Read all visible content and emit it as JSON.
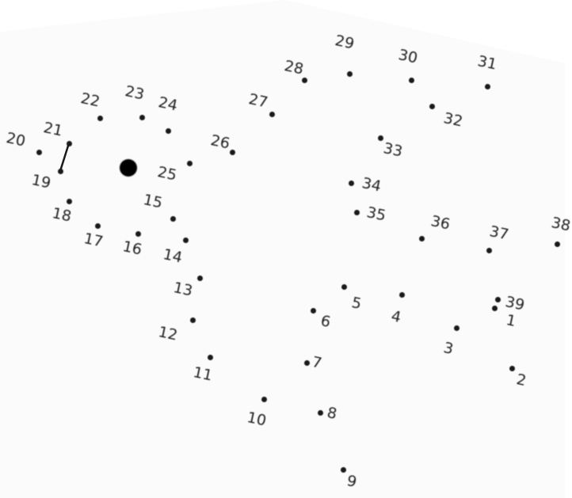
{
  "colors": {
    "paper": "#fbfbfb",
    "ink": "#1a1a1a"
  },
  "points": [
    {
      "label": "1"
    },
    {
      "label": "2"
    },
    {
      "label": "3"
    },
    {
      "label": "4"
    },
    {
      "label": "5"
    },
    {
      "label": "6"
    },
    {
      "label": "7"
    },
    {
      "label": "8"
    },
    {
      "label": "9"
    },
    {
      "label": "10"
    },
    {
      "label": "11"
    },
    {
      "label": "12"
    },
    {
      "label": "13"
    },
    {
      "label": "14"
    },
    {
      "label": "15"
    },
    {
      "label": "16"
    },
    {
      "label": "17"
    },
    {
      "label": "18"
    },
    {
      "label": "19"
    },
    {
      "label": "20"
    },
    {
      "label": "21"
    },
    {
      "label": "22"
    },
    {
      "label": "23"
    },
    {
      "label": "24"
    },
    {
      "label": "25"
    },
    {
      "label": "26"
    },
    {
      "label": "27"
    },
    {
      "label": "28"
    },
    {
      "label": "29"
    },
    {
      "label": "30"
    },
    {
      "label": "31"
    },
    {
      "label": "32"
    },
    {
      "label": "33"
    },
    {
      "label": "34"
    },
    {
      "label": "35"
    },
    {
      "label": "36"
    },
    {
      "label": "37"
    },
    {
      "label": "38"
    },
    {
      "label": "39"
    }
  ]
}
